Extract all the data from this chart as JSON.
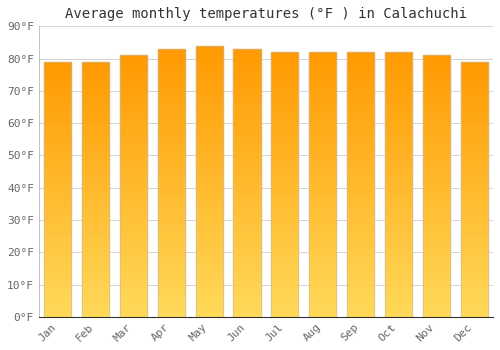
{
  "title": "Average monthly temperatures (°F ) in Calachuchi",
  "months": [
    "Jan",
    "Feb",
    "Mar",
    "Apr",
    "May",
    "Jun",
    "Jul",
    "Aug",
    "Sep",
    "Oct",
    "Nov",
    "Dec"
  ],
  "values": [
    79.0,
    79.0,
    81.0,
    83.0,
    84.0,
    83.0,
    82.0,
    82.0,
    82.0,
    82.0,
    81.0,
    79.0
  ],
  "bar_color_top": "#FFA500",
  "bar_color_bottom": "#FFD966",
  "bar_edge_color": "#CCCCCC",
  "background_color": "#FFFFFF",
  "grid_color": "#CCCCCC",
  "ylim": [
    0,
    90
  ],
  "yticks": [
    0,
    10,
    20,
    30,
    40,
    50,
    60,
    70,
    80,
    90
  ],
  "ytick_labels": [
    "0°F",
    "10°F",
    "20°F",
    "30°F",
    "40°F",
    "50°F",
    "60°F",
    "70°F",
    "80°F",
    "90°F"
  ],
  "title_fontsize": 10,
  "tick_fontsize": 8,
  "font_family": "monospace"
}
